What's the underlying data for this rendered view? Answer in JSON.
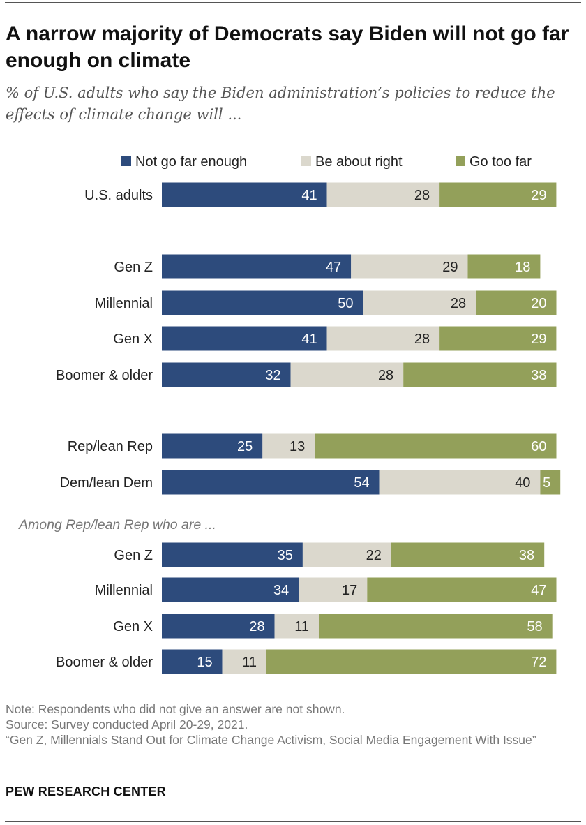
{
  "title": "A narrow majority of Democrats say Biden will not go far enough on climate",
  "subtitle": "% of U.S. adults who say the Biden administration’s policies to reduce the effects of climate change will ...",
  "footer": {
    "note": "Note: Respondents who did not give an answer are not shown.",
    "source": "Source: Survey conducted April 20-29, 2021.",
    "report": "“Gen Z, Millennials Stand Out for Climate Change Activism, Social Media Engagement With Issue”",
    "brand": "PEW RESEARCH CENTER"
  },
  "chart_data": {
    "type": "bar",
    "orientation": "horizontal",
    "stacked": true,
    "legend_position": "top",
    "xlim": [
      0,
      100
    ],
    "grid": false,
    "categories": [
      "U.S. adults",
      "Gen Z",
      "Millennial",
      "Gen X",
      "Boomer & older",
      "Rep/lean Rep",
      "Dem/lean Dem",
      "Gen Z",
      "Millennial",
      "Gen X",
      "Boomer & older"
    ],
    "groups": [
      {
        "label": "",
        "rows": [
          0
        ]
      },
      {
        "label": "",
        "rows": [
          1,
          2,
          3,
          4
        ]
      },
      {
        "label": "",
        "rows": [
          5,
          6
        ]
      },
      {
        "label": "Among Rep/lean Rep who are ...",
        "rows": [
          7,
          8,
          9,
          10
        ]
      }
    ],
    "series": [
      {
        "name": "Not go far enough",
        "color": "#2d4b7c",
        "label_color": "#ffffff",
        "values": [
          41,
          47,
          50,
          41,
          32,
          25,
          54,
          35,
          34,
          28,
          15
        ]
      },
      {
        "name": "Be about right",
        "color": "#dbd8cd",
        "label_color": "#222222",
        "values": [
          28,
          29,
          28,
          28,
          28,
          13,
          40,
          22,
          17,
          11,
          11
        ]
      },
      {
        "name": "Go too far",
        "color": "#93a05a",
        "label_color": "#ffffff",
        "values": [
          29,
          18,
          20,
          29,
          38,
          60,
          5,
          38,
          47,
          58,
          72
        ]
      }
    ]
  }
}
